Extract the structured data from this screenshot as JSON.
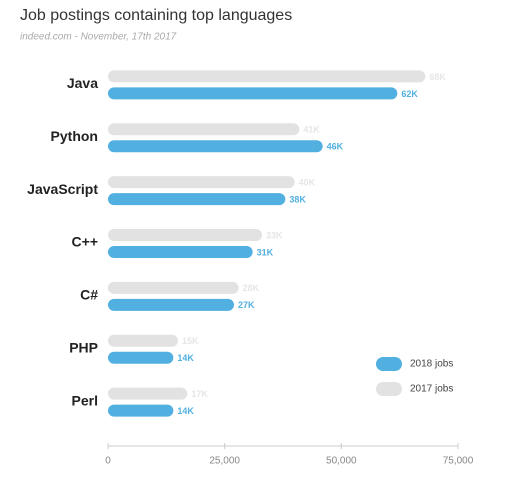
{
  "chart_data": {
    "type": "bar",
    "orientation": "horizontal",
    "title": "Job postings containing top languages",
    "subtitle": "indeed.com - November, 17th 2017",
    "categories": [
      "Java",
      "Python",
      "JavaScript",
      "C++",
      "C#",
      "PHP",
      "Perl"
    ],
    "series": [
      {
        "name": "2018 jobs",
        "color": "#52b0e0",
        "values": [
          62000,
          46000,
          38000,
          31000,
          27000,
          14000,
          14000
        ],
        "value_labels": [
          "62K",
          "46K",
          "38K",
          "31K",
          "27K",
          "14K",
          "14K"
        ]
      },
      {
        "name": "2017 jobs",
        "color": "#e2e2e2",
        "values": [
          68000,
          41000,
          40000,
          33000,
          28000,
          15000,
          17000
        ],
        "value_labels": [
          "68K",
          "41K",
          "40K",
          "33K",
          "28K",
          "15K",
          "17K"
        ]
      }
    ],
    "xlim": [
      0,
      75000
    ],
    "xticks": [
      0,
      {
        "value": 25000,
        "label": "25,000"
      },
      {
        "value": 50000,
        "label": "50,000"
      },
      {
        "value": 75000,
        "label": "75,000"
      }
    ],
    "legend": "lower right"
  }
}
